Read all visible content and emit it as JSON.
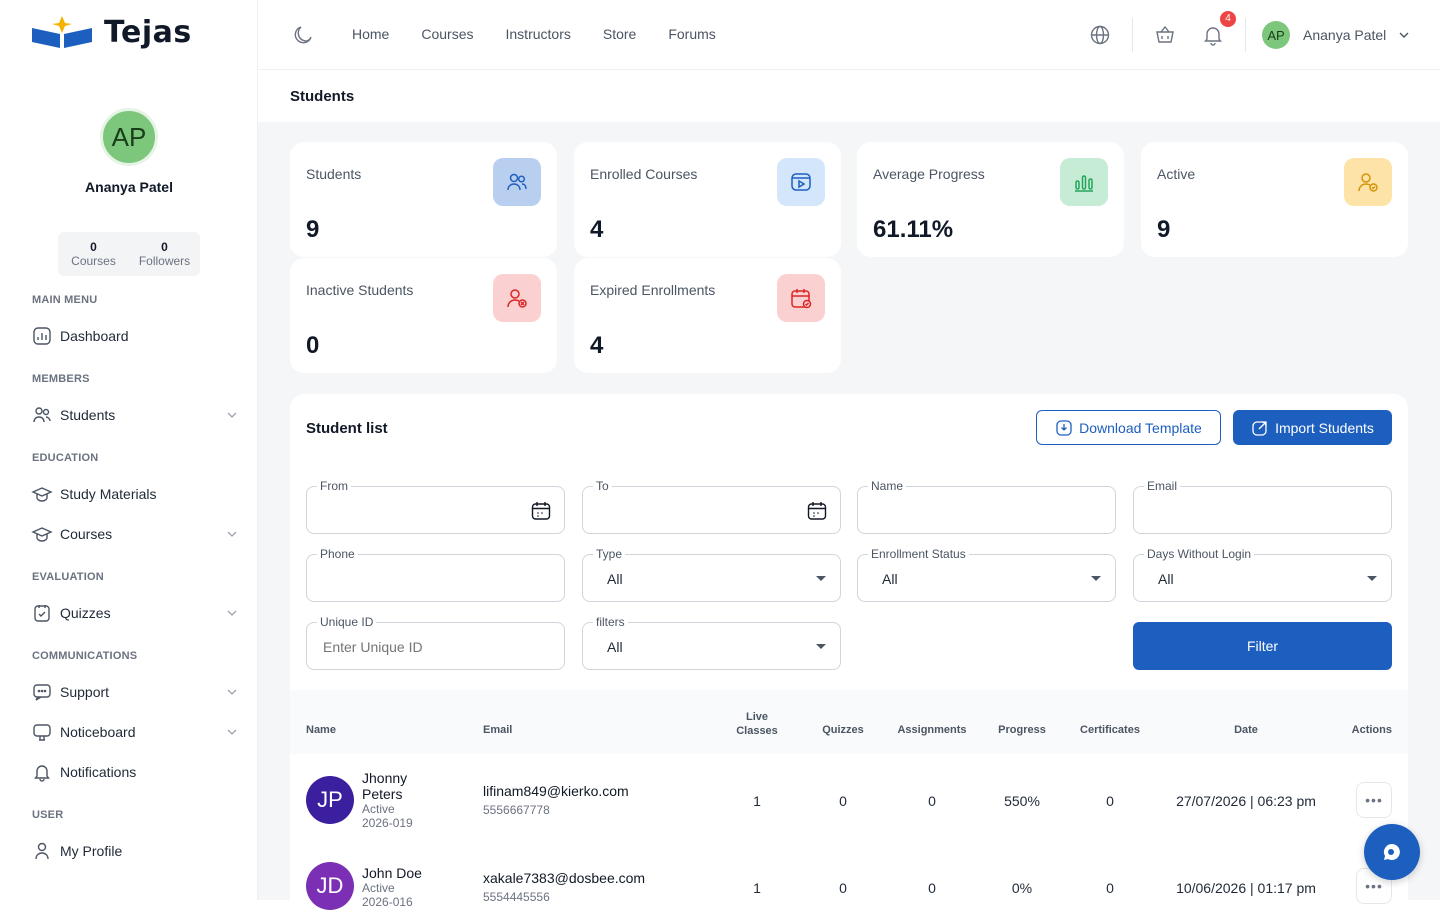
{
  "brand": {
    "name": "Tejas"
  },
  "profile": {
    "initials": "AP",
    "name": "Ananya Patel",
    "stats": [
      {
        "value": "0",
        "label": "Courses"
      },
      {
        "value": "0",
        "label": "Followers"
      }
    ]
  },
  "sidebar": {
    "sections": [
      "MAIN MENU",
      "MEMBERS",
      "EDUCATION",
      "EVALUATION",
      "COMMUNICATIONS",
      "USER"
    ],
    "items": [
      {
        "label": "Dashboard",
        "icon": "dashboard-icon"
      },
      {
        "label": "Students",
        "icon": "users-icon"
      },
      {
        "label": "Study Materials",
        "icon": "graduation-cap-icon"
      },
      {
        "label": "Courses",
        "icon": "graduation-cap-icon"
      },
      {
        "label": "Quizzes",
        "icon": "quiz-icon"
      },
      {
        "label": "Support",
        "icon": "chat-icon"
      },
      {
        "label": "Noticeboard",
        "icon": "noticeboard-icon"
      },
      {
        "label": "Notifications",
        "icon": "bell-icon"
      },
      {
        "label": "My Profile",
        "icon": "user-icon"
      }
    ]
  },
  "topbar": {
    "nav": [
      "Home",
      "Courses",
      "Instructors",
      "Store",
      "Forums"
    ],
    "notification_count": "4",
    "user_initials": "AP",
    "user_name": "Ananya Patel"
  },
  "page": {
    "title": "Students"
  },
  "cards": [
    {
      "label": "Students",
      "value": "9",
      "icon": "users-icon",
      "color": "#b9cff0"
    },
    {
      "label": "Enrolled Courses",
      "value": "4",
      "icon": "video-icon",
      "color": "#d3e6fb"
    },
    {
      "label": "Average Progress",
      "value": "61.11%",
      "icon": "bar-chart-icon",
      "color": "#c6ecd5"
    },
    {
      "label": "Active",
      "value": "9",
      "icon": "user-check-icon",
      "color": "#fde3a7"
    },
    {
      "label": "Inactive Students",
      "value": "0",
      "icon": "user-x-icon",
      "color": "#fbd0d0"
    },
    {
      "label": "Expired Enrollments",
      "value": "4",
      "icon": "calendar-icon",
      "color": "#fbd0d0"
    }
  ],
  "student_list": {
    "title": "Student list",
    "download_label": "Download Template",
    "import_label": "Import Students",
    "filter_label": "Filter",
    "fields": {
      "from": {
        "label": "From"
      },
      "to": {
        "label": "To"
      },
      "name": {
        "label": "Name"
      },
      "email": {
        "label": "Email"
      },
      "phone": {
        "label": "Phone"
      },
      "type": {
        "label": "Type",
        "value": "All"
      },
      "enrollment_status": {
        "label": "Enrollment Status",
        "value": "All"
      },
      "days_without_login": {
        "label": "Days Without Login",
        "value": "All"
      },
      "unique_id": {
        "label": "Unique ID",
        "placeholder": "Enter Unique ID"
      },
      "filters": {
        "label": "filters",
        "value": "All"
      }
    },
    "columns": [
      "Name",
      "Email",
      "Live Classes",
      "Quizzes",
      "Assignments",
      "Progress",
      "Certificates",
      "Date",
      "Actions"
    ],
    "rows": [
      {
        "initials": "JP",
        "avatar_color": "#3b1f9e",
        "name": "Jhonny Peters",
        "status": "Active",
        "uid": "2026-019",
        "email": "lifinam849@kierko.com",
        "phone": "5556667778",
        "live_classes": "1",
        "quizzes": "0",
        "assignments": "0",
        "progress": "550%",
        "certificates": "0",
        "date": "27/07/2026 | 06:23 pm"
      },
      {
        "initials": "JD",
        "avatar_color": "#7b2fb5",
        "name": "John Doe",
        "status": "Active",
        "uid": "2026-016",
        "email": "xakale7383@dosbee.com",
        "phone": "5554445556",
        "live_classes": "1",
        "quizzes": "0",
        "assignments": "0",
        "progress": "0%",
        "certificates": "0",
        "date": "10/06/2026 | 01:17 pm"
      }
    ]
  }
}
